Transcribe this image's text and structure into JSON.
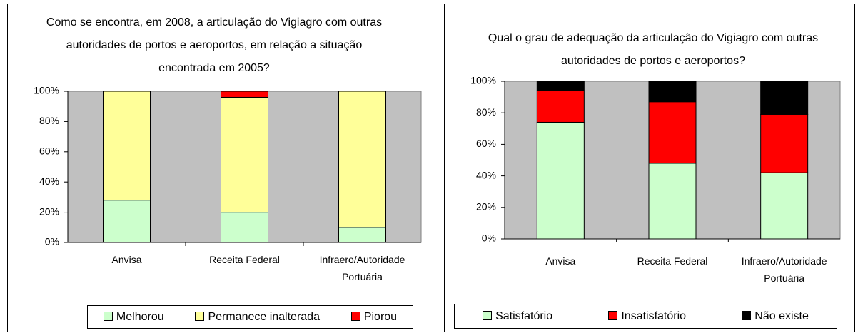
{
  "chart_data": [
    {
      "type": "stacked_bar",
      "title": "Como se encontra, em 2008, a articulação do Vigiagro com outras autoridades de portos e aeroportos, em relação a situação encontrada em 2005?",
      "categories": [
        "Anvisa",
        "Receita Federal",
        "Infraero/Autoridade Portuária"
      ],
      "series": [
        {
          "name": "Melhorou",
          "color": "#ccffcc",
          "values": [
            28,
            20,
            10
          ]
        },
        {
          "name": "Permanece inalterada",
          "color": "#ffff99",
          "values": [
            72,
            76,
            90
          ]
        },
        {
          "name": "Piorou",
          "color": "#ff0000",
          "values": [
            0,
            4,
            0
          ]
        }
      ],
      "ylim": [
        0,
        100
      ],
      "yticks": [
        {
          "value": 0,
          "label": "0%"
        },
        {
          "value": 20,
          "label": "20%"
        },
        {
          "value": 40,
          "label": "40%"
        },
        {
          "value": 60,
          "label": "60%"
        },
        {
          "value": 80,
          "label": "80%"
        },
        {
          "value": 100,
          "label": "100%"
        }
      ],
      "legend": "bottom"
    },
    {
      "type": "stacked_bar",
      "title": "Qual o grau de adequação da articulação do Vigiagro com outras autoridades de portos e aeroportos?",
      "categories": [
        "Anvisa",
        "Receita Federal",
        "Infraero/Autoridade Portuária"
      ],
      "series": [
        {
          "name": "Satisfatório",
          "color": "#ccffcc",
          "values": [
            74,
            48,
            42
          ]
        },
        {
          "name": "Insatisfatório",
          "color": "#ff0000",
          "values": [
            20,
            39,
            37
          ]
        },
        {
          "name": "Não existe",
          "color": "#000000",
          "values": [
            6,
            13,
            21
          ]
        }
      ],
      "ylim": [
        0,
        100
      ],
      "yticks": [
        {
          "value": 0,
          "label": "0%"
        },
        {
          "value": 20,
          "label": "20%"
        },
        {
          "value": 40,
          "label": "40%"
        },
        {
          "value": 60,
          "label": "60%"
        },
        {
          "value": 80,
          "label": "80%"
        },
        {
          "value": 100,
          "label": "100%"
        }
      ],
      "legend": "bottom"
    }
  ]
}
